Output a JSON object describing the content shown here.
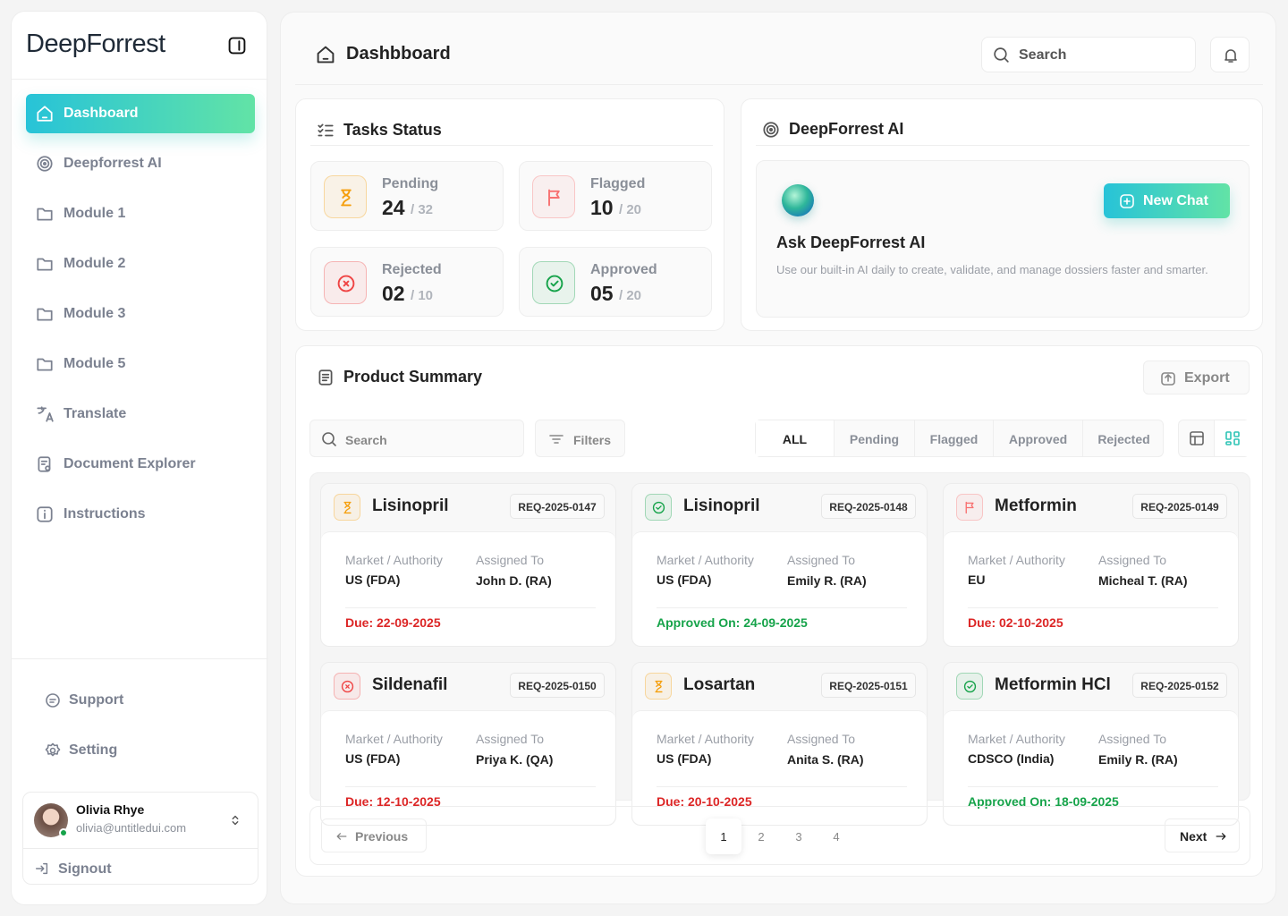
{
  "sidebar": {
    "brand": "DeepForrest",
    "nav": [
      "Dashboard",
      "Deepforrest AI",
      "Module 1",
      "Module 2",
      "Module 3",
      "Module 5",
      "Translate",
      "Document Explorer",
      "Instructions"
    ],
    "active_nav": 0,
    "footer_nav": [
      "Support",
      "Setting"
    ],
    "user": {
      "name": "Olivia Rhye",
      "email": "olivia@untitledui.com"
    },
    "signout": "Signout"
  },
  "header": {
    "title": "Dashbboard",
    "search": "Search"
  },
  "tasks": {
    "title": "Tasks Status",
    "items": [
      {
        "label": "Pending",
        "count": "24",
        "total": "/ 32",
        "color": "#f59e0b"
      },
      {
        "label": "Flagged",
        "count": "10",
        "total": "/ 20",
        "color": "#f87171"
      },
      {
        "label": "Rejected",
        "count": "02",
        "total": "/ 10",
        "color": "#ef4444"
      },
      {
        "label": "Approved",
        "count": "05",
        "total": "/ 20",
        "color": "#16a34a"
      }
    ]
  },
  "ai": {
    "title": "DeepForrest AI",
    "button": "New Chat",
    "heading": "Ask DeepForrest AI",
    "description": "Use our built-in AI daily to create, validate, and manage dossiers faster and smarter."
  },
  "products": {
    "title": "Product Summary",
    "export": "Export",
    "search": "Search",
    "filters": "Filters",
    "tabs": [
      "ALL",
      "Pending",
      "Flagged",
      "Approved",
      "Rejected"
    ],
    "active_tab": 0,
    "market_label": "Market / Authority",
    "assigned_label": "Assigned To",
    "cards": [
      {
        "name": "Lisinopril",
        "id": "REQ-2025-0147",
        "market": "US (FDA)",
        "assigned": "John D. (RA)",
        "status": "Due: 22-09-2025",
        "color": "#f59e0b",
        "status_color": "#dc2626"
      },
      {
        "name": "Lisinopril",
        "id": "REQ-2025-0148",
        "market": "US (FDA)",
        "assigned": "Emily R. (RA)",
        "status": "Approved On: 24-09-2025",
        "color": "#16a34a",
        "status_color": "#16a34a"
      },
      {
        "name": "Metformin",
        "id": "REQ-2025-0149",
        "market": "EU",
        "assigned": "Micheal T. (RA)",
        "status": "Due: 02-10-2025",
        "color": "#f87171",
        "status_color": "#dc2626"
      },
      {
        "name": "Sildenafil",
        "id": "REQ-2025-0150",
        "market": "US (FDA)",
        "assigned": "Priya K. (QA)",
        "status": "Due: 12-10-2025",
        "color": "#ef4444",
        "status_color": "#dc2626"
      },
      {
        "name": "Losartan",
        "id": "REQ-2025-0151",
        "market": "US (FDA)",
        "assigned": "Anita S. (RA)",
        "status": "Due: 20-10-2025",
        "color": "#f59e0b",
        "status_color": "#dc2626"
      },
      {
        "name": "Metformin HCl",
        "id": "REQ-2025-0152",
        "market": "CDSCO (India)",
        "assigned": "Emily R. (RA)",
        "status": "Approved On: 18-09-2025",
        "color": "#16a34a",
        "status_color": "#16a34a"
      }
    ]
  },
  "pagination": {
    "previous": "Previous",
    "pages": [
      "1",
      "2",
      "3",
      "4"
    ],
    "current": 0,
    "next": "Next"
  }
}
